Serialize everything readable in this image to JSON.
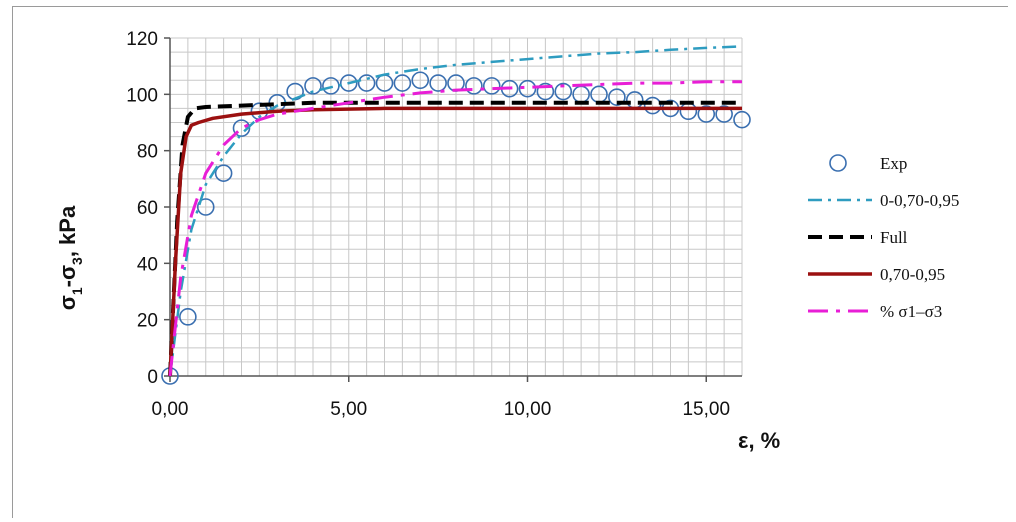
{
  "chart_data": {
    "type": "line",
    "title": "",
    "xlabel": "ε, %",
    "ylabel": "σ1-σ3,  kPa",
    "xlim": [
      0,
      16
    ],
    "ylim": [
      0,
      120
    ],
    "x_ticks": [
      0,
      5,
      10,
      15
    ],
    "x_tick_labels": [
      "0,00",
      "5,00",
      "10,00",
      "15,00"
    ],
    "y_ticks": [
      0,
      20,
      40,
      60,
      80,
      100,
      120
    ],
    "y_tick_labels": [
      "0",
      "20",
      "40",
      "60",
      "80",
      "100",
      "120"
    ],
    "grid": true,
    "legend_position": "right",
    "series": [
      {
        "name": "Exp",
        "style": "open-circle",
        "color": "#3a6fb0",
        "x": [
          0,
          0.5,
          1,
          1.5,
          2,
          2.5,
          3,
          3.5,
          4,
          4.5,
          5,
          5.5,
          6,
          6.5,
          7,
          7.5,
          8,
          8.5,
          9,
          9.5,
          10,
          10.5,
          11,
          11.5,
          12,
          12.5,
          13,
          13.5,
          14,
          14.5,
          15,
          15.5,
          16
        ],
        "y": [
          0,
          21,
          60,
          72,
          88,
          94,
          97,
          101,
          103,
          103,
          104,
          104,
          104,
          104,
          105,
          104,
          104,
          103,
          103,
          102,
          102,
          101,
          101,
          100,
          100,
          99,
          98,
          96,
          95,
          94,
          93,
          93,
          91
        ]
      },
      {
        "name": "0-0,70-0,95",
        "style": "dash-dot",
        "color": "#2e9cc0",
        "x": [
          0,
          0.3,
          0.6,
          1,
          1.5,
          2,
          2.5,
          3,
          4,
          5,
          6,
          7,
          8,
          9,
          10,
          11,
          12,
          13,
          14,
          15,
          16
        ],
        "y": [
          0,
          30,
          52,
          68,
          78,
          86,
          92,
          96,
          101,
          104,
          107,
          109,
          110.5,
          111.5,
          112.5,
          113.5,
          114.5,
          115,
          115.8,
          116.5,
          117
        ]
      },
      {
        "name": "Full",
        "style": "dashed",
        "color": "#000000",
        "x": [
          0,
          0.2,
          0.35,
          0.5,
          0.7,
          1,
          2,
          3,
          4,
          6,
          8,
          10,
          12,
          14,
          16
        ],
        "y": [
          0,
          55,
          82,
          92,
          95,
          95.5,
          96,
          96.5,
          97,
          97,
          97,
          97,
          97,
          97,
          97
        ]
      },
      {
        "name": "0,70-0,95",
        "style": "solid",
        "color": "#9b1010",
        "x": [
          0,
          0.15,
          0.3,
          0.45,
          0.6,
          0.8,
          1.2,
          2,
          3,
          4,
          6,
          8,
          10,
          12,
          14,
          16
        ],
        "y": [
          0,
          40,
          72,
          85,
          89,
          90,
          91.5,
          93,
          94,
          94.5,
          95,
          95,
          95,
          95,
          95,
          95
        ]
      },
      {
        "name": "% σ1–σ3",
        "style": "long-dash-dot",
        "color": "#e81ed6",
        "x": [
          0,
          0.3,
          0.6,
          1,
          1.5,
          2,
          2.5,
          3,
          4,
          5,
          6,
          7,
          8,
          9,
          10,
          11,
          12,
          13,
          14,
          15,
          16
        ],
        "y": [
          0,
          35,
          57,
          72,
          82,
          88,
          91,
          93,
          95,
          97,
          99,
          100.5,
          101.5,
          102,
          102.5,
          103,
          103.5,
          104,
          104,
          104.5,
          104.5
        ]
      }
    ]
  }
}
